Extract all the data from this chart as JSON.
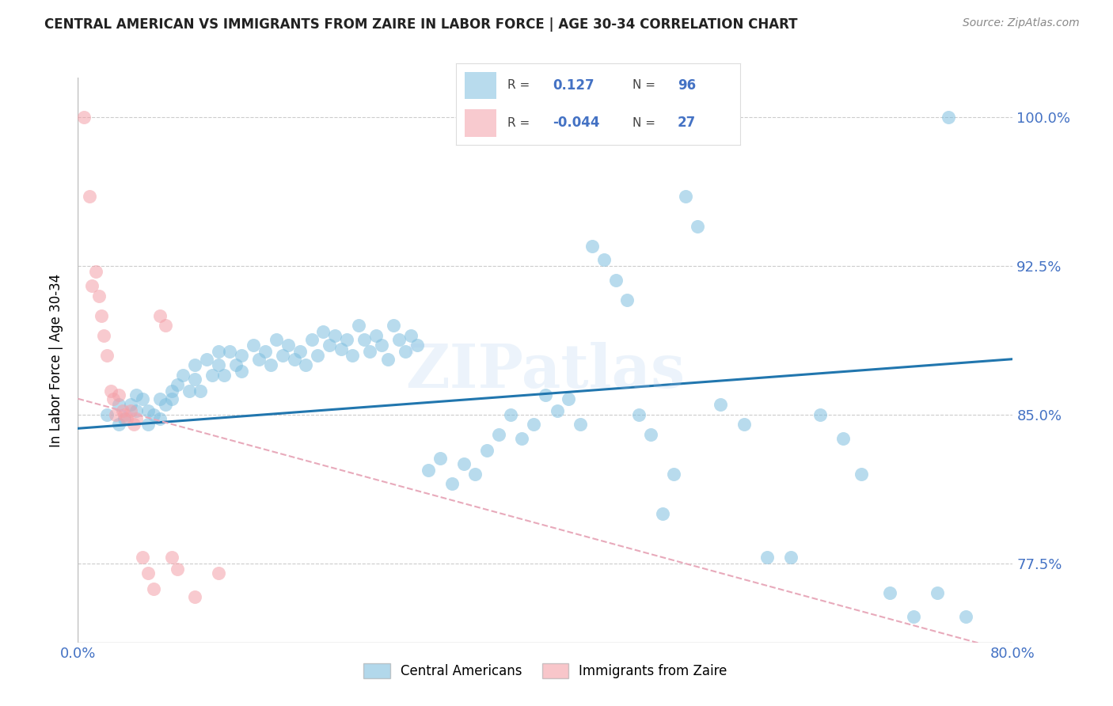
{
  "title": "CENTRAL AMERICAN VS IMMIGRANTS FROM ZAIRE IN LABOR FORCE | AGE 30-34 CORRELATION CHART",
  "source": "Source: ZipAtlas.com",
  "ylabel": "In Labor Force | Age 30-34",
  "xlim": [
    0.0,
    0.8
  ],
  "ylim": [
    0.735,
    1.02
  ],
  "yticks": [
    0.775,
    0.85,
    0.925,
    1.0
  ],
  "ytick_labels": [
    "77.5%",
    "85.0%",
    "92.5%",
    "100.0%"
  ],
  "xticks": [
    0.0,
    0.2,
    0.4,
    0.6,
    0.8
  ],
  "xtick_labels": [
    "0.0%",
    "",
    "",
    "",
    "80.0%"
  ],
  "blue_color": "#7fbfdf",
  "pink_color": "#f4a0a8",
  "trend_blue": "#2176ae",
  "trend_pink": "#e8aabb",
  "watermark": "ZIPatlas",
  "blue_scatter_x": [
    0.025,
    0.035,
    0.035,
    0.04,
    0.045,
    0.05,
    0.05,
    0.055,
    0.06,
    0.06,
    0.065,
    0.07,
    0.07,
    0.075,
    0.08,
    0.08,
    0.085,
    0.09,
    0.095,
    0.1,
    0.1,
    0.105,
    0.11,
    0.115,
    0.12,
    0.12,
    0.125,
    0.13,
    0.135,
    0.14,
    0.14,
    0.15,
    0.155,
    0.16,
    0.165,
    0.17,
    0.175,
    0.18,
    0.185,
    0.19,
    0.195,
    0.2,
    0.205,
    0.21,
    0.215,
    0.22,
    0.225,
    0.23,
    0.235,
    0.24,
    0.245,
    0.25,
    0.255,
    0.26,
    0.265,
    0.27,
    0.275,
    0.28,
    0.285,
    0.29,
    0.3,
    0.31,
    0.32,
    0.33,
    0.34,
    0.35,
    0.36,
    0.37,
    0.38,
    0.39,
    0.4,
    0.41,
    0.42,
    0.43,
    0.44,
    0.45,
    0.46,
    0.47,
    0.48,
    0.49,
    0.5,
    0.51,
    0.52,
    0.53,
    0.55,
    0.57,
    0.59,
    0.61,
    0.635,
    0.655,
    0.67,
    0.695,
    0.715,
    0.735,
    0.745,
    0.76
  ],
  "blue_scatter_y": [
    0.85,
    0.845,
    0.855,
    0.848,
    0.855,
    0.852,
    0.86,
    0.858,
    0.852,
    0.845,
    0.85,
    0.858,
    0.848,
    0.855,
    0.862,
    0.858,
    0.865,
    0.87,
    0.862,
    0.875,
    0.868,
    0.862,
    0.878,
    0.87,
    0.882,
    0.875,
    0.87,
    0.882,
    0.875,
    0.88,
    0.872,
    0.885,
    0.878,
    0.882,
    0.875,
    0.888,
    0.88,
    0.885,
    0.878,
    0.882,
    0.875,
    0.888,
    0.88,
    0.892,
    0.885,
    0.89,
    0.883,
    0.888,
    0.88,
    0.895,
    0.888,
    0.882,
    0.89,
    0.885,
    0.878,
    0.895,
    0.888,
    0.882,
    0.89,
    0.885,
    0.822,
    0.828,
    0.815,
    0.825,
    0.82,
    0.832,
    0.84,
    0.85,
    0.838,
    0.845,
    0.86,
    0.852,
    0.858,
    0.845,
    0.935,
    0.928,
    0.918,
    0.908,
    0.85,
    0.84,
    0.8,
    0.82,
    0.96,
    0.945,
    0.855,
    0.845,
    0.778,
    0.778,
    0.85,
    0.838,
    0.82,
    0.76,
    0.748,
    0.76,
    1.0,
    0.748
  ],
  "pink_scatter_x": [
    0.005,
    0.01,
    0.012,
    0.015,
    0.018,
    0.02,
    0.022,
    0.025,
    0.028,
    0.03,
    0.032,
    0.035,
    0.038,
    0.04,
    0.042,
    0.045,
    0.048,
    0.05,
    0.055,
    0.06,
    0.065,
    0.07,
    0.075,
    0.08,
    0.085,
    0.1,
    0.12
  ],
  "pink_scatter_y": [
    1.0,
    0.96,
    0.915,
    0.922,
    0.91,
    0.9,
    0.89,
    0.88,
    0.862,
    0.858,
    0.85,
    0.86,
    0.852,
    0.85,
    0.848,
    0.852,
    0.845,
    0.848,
    0.778,
    0.77,
    0.762,
    0.9,
    0.895,
    0.778,
    0.772,
    0.758,
    0.77
  ],
  "blue_trend_x0": 0.0,
  "blue_trend_y0": 0.843,
  "blue_trend_x1": 0.8,
  "blue_trend_y1": 0.878,
  "pink_trend_x0": 0.0,
  "pink_trend_y0": 0.858,
  "pink_trend_x1": 0.8,
  "pink_trend_y1": 0.73
}
